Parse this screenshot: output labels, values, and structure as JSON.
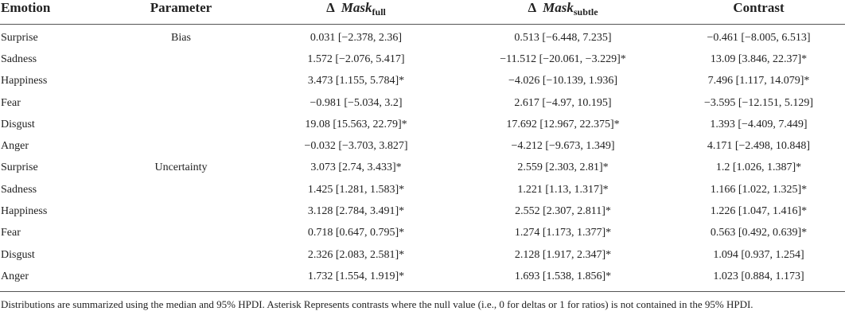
{
  "headers": {
    "emotion": "Emotion",
    "parameter": "Parameter",
    "delta_symbol": "Δ",
    "mask_full_main": "Mask",
    "mask_full_sub": "full",
    "mask_subtle_main": "Mask",
    "mask_subtle_sub": "subtle",
    "contrast": "Contrast"
  },
  "rows": [
    {
      "emotion": "Surprise",
      "parameter": "Bias",
      "full": "0.031 [−2.378, 2.36]",
      "subtle": "0.513 [−6.448, 7.235]",
      "contrast": "−0.461 [−8.005, 6.513]"
    },
    {
      "emotion": "Sadness",
      "parameter": "",
      "full": "1.572 [−2.076, 5.417]",
      "subtle": "−11.512 [−20.061, −3.229]*",
      "contrast": "13.09 [3.846, 22.37]*"
    },
    {
      "emotion": "Happiness",
      "parameter": "",
      "full": "3.473 [1.155, 5.784]*",
      "subtle": "−4.026 [−10.139, 1.936]",
      "contrast": "7.496 [1.117, 14.079]*"
    },
    {
      "emotion": "Fear",
      "parameter": "",
      "full": "−0.981 [−5.034, 3.2]",
      "subtle": "2.617 [−4.97, 10.195]",
      "contrast": "−3.595 [−12.151, 5.129]"
    },
    {
      "emotion": "Disgust",
      "parameter": "",
      "full": "19.08 [15.563, 22.79]*",
      "subtle": "17.692 [12.967, 22.375]*",
      "contrast": "1.393 [−4.409, 7.449]"
    },
    {
      "emotion": "Anger",
      "parameter": "",
      "full": "−0.032 [−3.703, 3.827]",
      "subtle": "−4.212 [−9.673, 1.349]",
      "contrast": "4.171 [−2.498, 10.848]"
    },
    {
      "emotion": "Surprise",
      "parameter": "Uncertainty",
      "full": "3.073 [2.74, 3.433]*",
      "subtle": "2.559 [2.303, 2.81]*",
      "contrast": "1.2 [1.026, 1.387]*"
    },
    {
      "emotion": "Sadness",
      "parameter": "",
      "full": "1.425 [1.281, 1.583]*",
      "subtle": "1.221 [1.13, 1.317]*",
      "contrast": "1.166 [1.022, 1.325]*"
    },
    {
      "emotion": "Happiness",
      "parameter": "",
      "full": "3.128 [2.784, 3.491]*",
      "subtle": "2.552 [2.307, 2.811]*",
      "contrast": "1.226 [1.047, 1.416]*"
    },
    {
      "emotion": "Fear",
      "parameter": "",
      "full": "0.718 [0.647, 0.795]*",
      "subtle": "1.274 [1.173, 1.377]*",
      "contrast": "0.563 [0.492, 0.639]*"
    },
    {
      "emotion": "Disgust",
      "parameter": "",
      "full": "2.326 [2.083, 2.581]*",
      "subtle": "2.128 [1.917, 2.347]*",
      "contrast": "1.094 [0.937, 1.254]"
    },
    {
      "emotion": "Anger",
      "parameter": "",
      "full": "1.732 [1.554, 1.919]*",
      "subtle": "1.693 [1.538, 1.856]*",
      "contrast": "1.023 [0.884, 1.173]"
    }
  ],
  "footnote": "Distributions are summarized using the median and 95% HPDI. Asterisk Represents contrasts where the null value (i.e., 0 for deltas or 1 for ratios) is not contained in the 95% HPDI."
}
